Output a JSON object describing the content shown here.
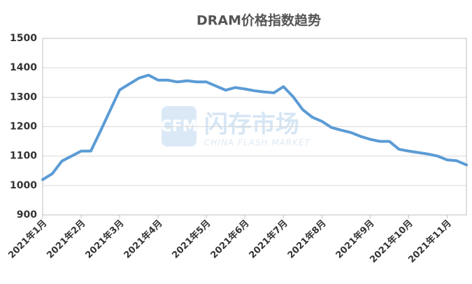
{
  "chart_data": {
    "type": "line",
    "title": "DRAM价格指数趋势",
    "watermark": {
      "logo": "CFM",
      "name": "闪存市场",
      "subtitle": "CHINA FLASH MARKET"
    },
    "categories": [
      "2021年1月",
      null,
      null,
      null,
      "2021年2月",
      null,
      null,
      null,
      "2021年3月",
      null,
      null,
      null,
      "2021年4月",
      null,
      null,
      null,
      null,
      "2021年5月",
      null,
      null,
      null,
      "2021年6月",
      null,
      null,
      null,
      "2021年7月",
      null,
      null,
      null,
      "2021年8月",
      null,
      null,
      null,
      null,
      "2021年9月",
      null,
      null,
      null,
      "2021年10月",
      null,
      null,
      null,
      "2021年11月",
      null,
      null
    ],
    "series": [
      {
        "name": "DRAM价格指数",
        "color": "#5b9bd5",
        "values": [
          1020,
          1040,
          1083,
          1100,
          1117,
          1117,
          1185,
          1255,
          1325,
          1345,
          1365,
          1375,
          1358,
          1358,
          1352,
          1356,
          1352,
          1352,
          1338,
          1324,
          1333,
          1328,
          1322,
          1318,
          1315,
          1336,
          1302,
          1258,
          1232,
          1218,
          1197,
          1188,
          1180,
          1167,
          1157,
          1150,
          1150,
          1123,
          1117,
          1112,
          1107,
          1100,
          1087,
          1084,
          1070
        ]
      }
    ],
    "ylim": [
      900,
      1500
    ],
    "yticks": [
      900,
      1000,
      1100,
      1200,
      1300,
      1400,
      1500
    ],
    "grid": true
  }
}
